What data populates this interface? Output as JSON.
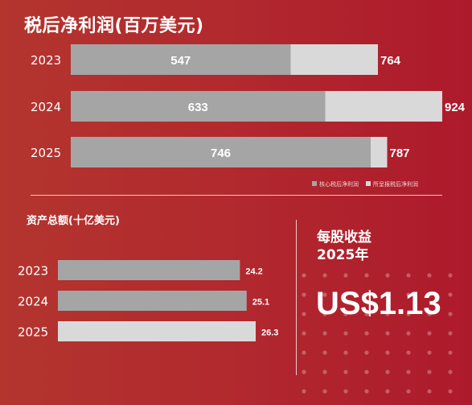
{
  "eps": {
    "label_line1": "每股收益",
    "label_line2": "2025年",
    "value": "US$1.13"
  },
  "chart_data": [
    {
      "type": "bar",
      "orientation": "horizontal",
      "title": "税后净利润(百万美元)",
      "categories": [
        "2023",
        "2024",
        "2025"
      ],
      "series": [
        {
          "name": "核心税后净利润",
          "values": [
            547,
            633,
            746
          ],
          "color": "#a5a5a5"
        },
        {
          "name": "所呈报税后净利润",
          "values": [
            764,
            924,
            787
          ],
          "color": "#d9d9d9"
        }
      ],
      "xlim": [
        0,
        924
      ],
      "grid": false,
      "legend": "bottom-right"
    },
    {
      "type": "bar",
      "orientation": "horizontal",
      "title": "资产总额(十亿美元)",
      "categories": [
        "2023",
        "2024",
        "2025"
      ],
      "values": [
        24.2,
        25.1,
        26.3
      ],
      "colors": [
        "#a5a5a5",
        "#a5a5a5",
        "#d9d9d9"
      ],
      "xlim": [
        0,
        26.3
      ],
      "grid": false
    }
  ]
}
